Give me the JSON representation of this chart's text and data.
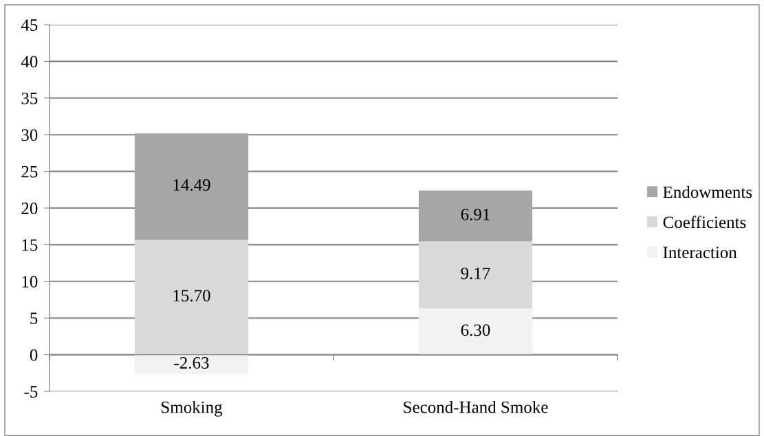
{
  "chart_data": {
    "type": "bar",
    "stacked": true,
    "categories": [
      "Smoking",
      "Second-Hand Smoke"
    ],
    "series": [
      {
        "name": "Interaction",
        "color": "#f2f2f2",
        "values": [
          -2.63,
          6.3
        ],
        "value_labels": [
          "-2.63",
          "6.30"
        ]
      },
      {
        "name": "Coefficients",
        "color": "#d9d9d9",
        "values": [
          15.7,
          9.17
        ],
        "value_labels": [
          "15.70",
          "9.17"
        ]
      },
      {
        "name": "Endowments",
        "color": "#a6a6a6",
        "values": [
          14.49,
          6.91
        ],
        "value_labels": [
          "14.49",
          "6.91"
        ]
      }
    ],
    "ylim": [
      -5,
      45
    ],
    "yticks": [
      -5,
      0,
      5,
      10,
      15,
      20,
      25,
      30,
      35,
      40,
      45
    ],
    "grid": "y",
    "legend": "right"
  }
}
